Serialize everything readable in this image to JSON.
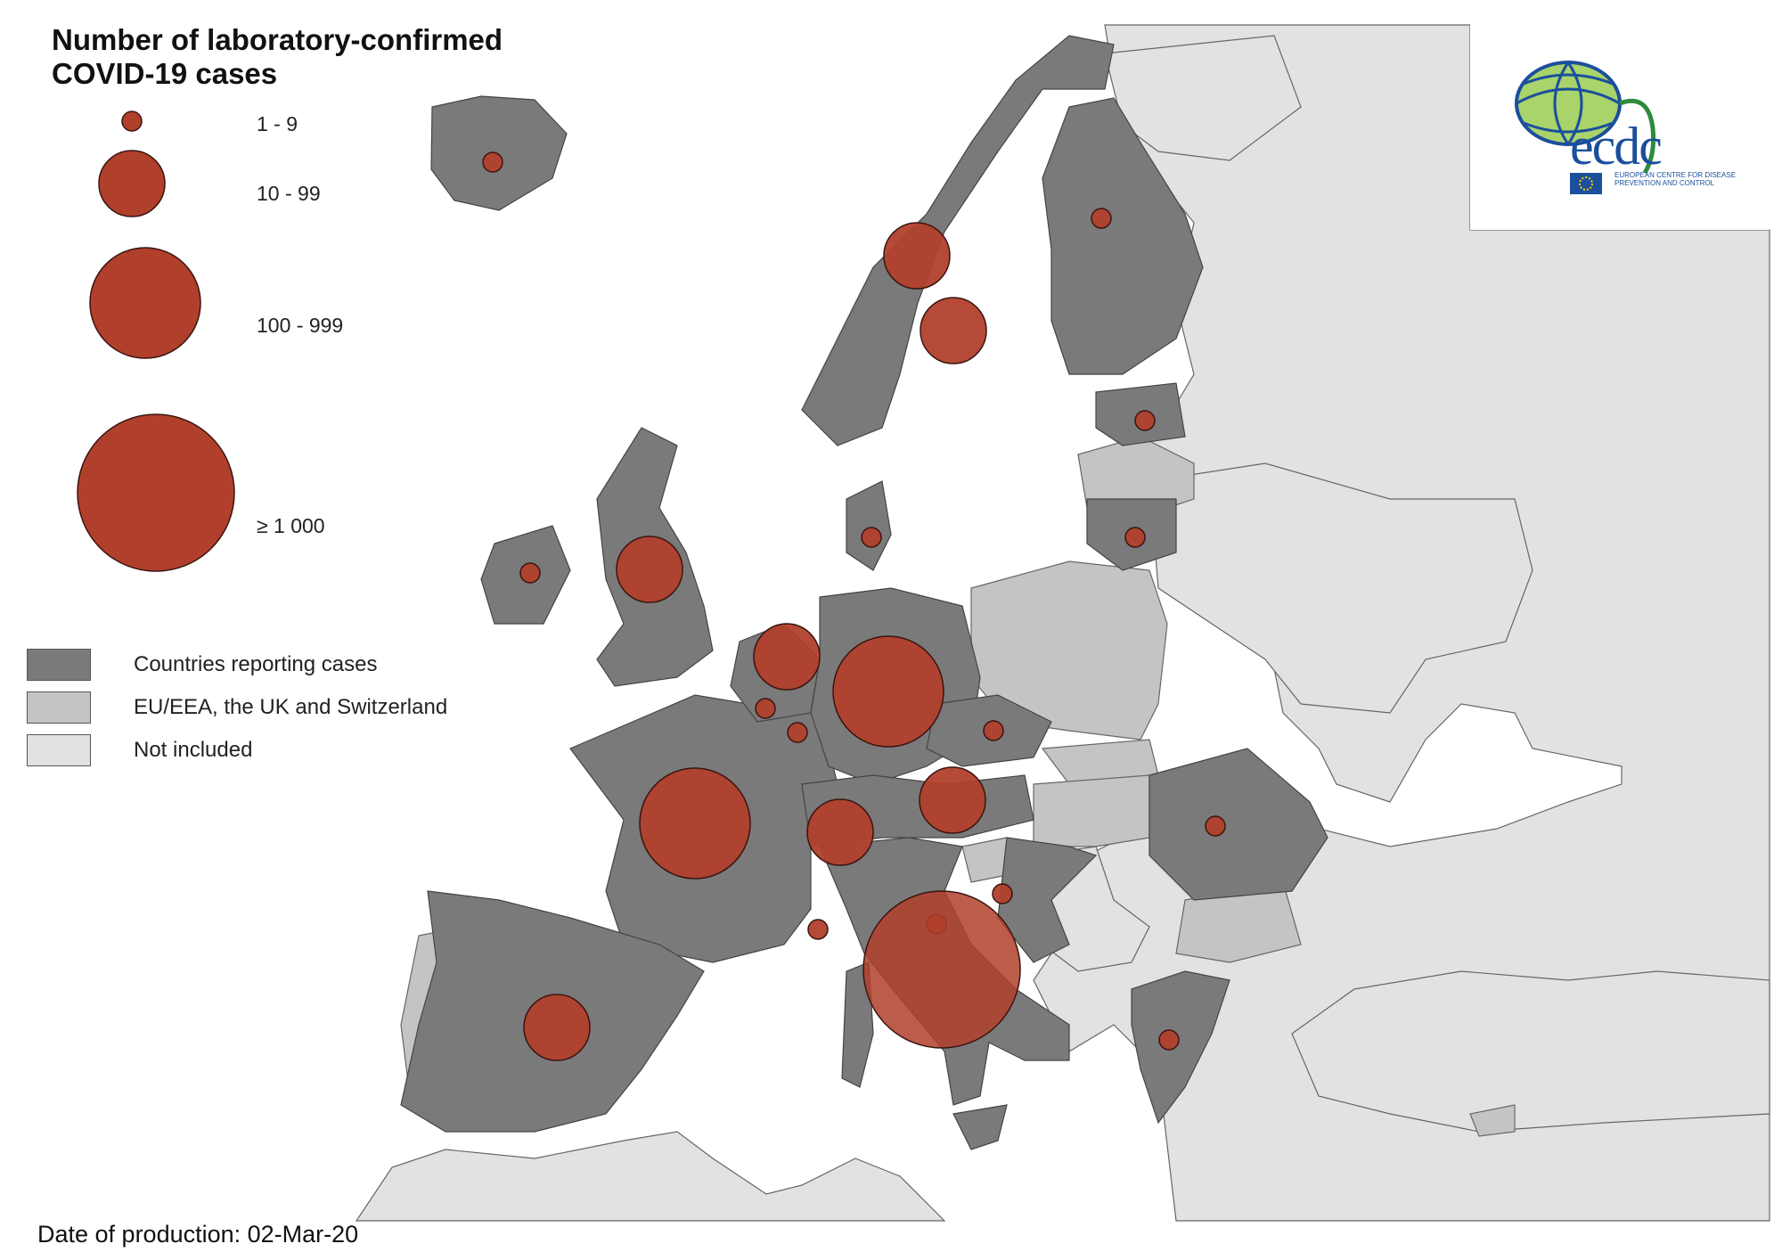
{
  "legend": {
    "title_line1": "Number of laboratory-confirmed",
    "title_line2": "COVID-19 cases",
    "size_classes": [
      {
        "label": "1 - 9"
      },
      {
        "label": "10 - 99"
      },
      {
        "label": "100 - 999"
      },
      {
        "label": "≥ 1 000"
      }
    ],
    "categories": [
      {
        "label": "Countries reporting cases",
        "color": "#7a7a7a"
      },
      {
        "label": "EU/EEA, the UK and Switzerland",
        "color": "#c4c4c4"
      },
      {
        "label": "Not included",
        "color": "#e2e2e2"
      }
    ]
  },
  "colors": {
    "sea": "#ffffff",
    "bubble_fill": "#b0402c",
    "bubble_stroke": "#3a1410",
    "border": "#555555"
  },
  "countries": [
    {
      "name": "Iceland",
      "category": "reporting",
      "cases_class": "1 - 9"
    },
    {
      "name": "Norway",
      "category": "reporting",
      "cases_class": "10 - 99"
    },
    {
      "name": "Sweden",
      "category": "reporting",
      "cases_class": "10 - 99"
    },
    {
      "name": "Finland",
      "category": "reporting",
      "cases_class": "1 - 9"
    },
    {
      "name": "Estonia",
      "category": "reporting",
      "cases_class": "1 - 9"
    },
    {
      "name": "Latvia",
      "category": "eu_eea",
      "cases_class": null
    },
    {
      "name": "Lithuania",
      "category": "reporting",
      "cases_class": "1 - 9"
    },
    {
      "name": "Denmark",
      "category": "reporting",
      "cases_class": "1 - 9"
    },
    {
      "name": "Ireland",
      "category": "reporting",
      "cases_class": "1 - 9"
    },
    {
      "name": "United Kingdom",
      "category": "reporting",
      "cases_class": "10 - 99"
    },
    {
      "name": "Netherlands",
      "category": "reporting",
      "cases_class": "10 - 99"
    },
    {
      "name": "Belgium",
      "category": "reporting",
      "cases_class": "1 - 9"
    },
    {
      "name": "Luxembourg",
      "category": "reporting",
      "cases_class": "1 - 9"
    },
    {
      "name": "Germany",
      "category": "reporting",
      "cases_class": "100 - 999"
    },
    {
      "name": "Czechia",
      "category": "reporting",
      "cases_class": "1 - 9"
    },
    {
      "name": "Austria",
      "category": "reporting",
      "cases_class": "10 - 99"
    },
    {
      "name": "Switzerland",
      "category": "reporting",
      "cases_class": "10 - 99"
    },
    {
      "name": "France",
      "category": "reporting",
      "cases_class": "100 - 999"
    },
    {
      "name": "Monaco",
      "category": "reporting",
      "cases_class": "1 - 9"
    },
    {
      "name": "San Marino",
      "category": "reporting",
      "cases_class": "1 - 9"
    },
    {
      "name": "Croatia",
      "category": "reporting",
      "cases_class": "1 - 9"
    },
    {
      "name": "Italy",
      "category": "reporting",
      "cases_class": "≥ 1 000"
    },
    {
      "name": "Spain",
      "category": "reporting",
      "cases_class": "10 - 99"
    },
    {
      "name": "Romania",
      "category": "reporting",
      "cases_class": "1 - 9"
    },
    {
      "name": "Greece",
      "category": "reporting",
      "cases_class": "1 - 9"
    }
  ],
  "footer": {
    "date_label": "Date of production: 02-Mar-20"
  },
  "logo": {
    "text": "ecdc",
    "subtitle": "EUROPEAN CENTRE FOR DISEASE PREVENTION AND CONTROL"
  }
}
